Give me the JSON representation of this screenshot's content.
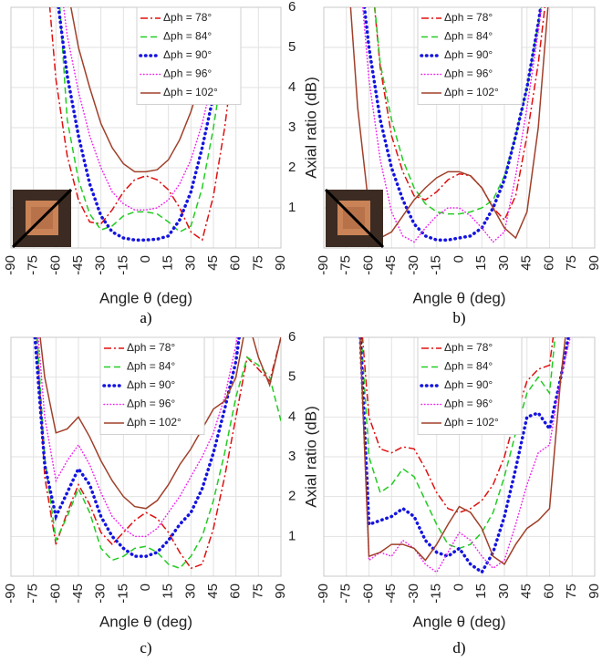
{
  "chart_data": [
    {
      "type": "line",
      "caption": "a)",
      "xlabel": "Angle θ (deg)",
      "ylabel": "Axial ratio (dB)",
      "show_ytick_labels": true,
      "grid": true,
      "xlim": [
        -90,
        90
      ],
      "ylim": [
        0,
        6
      ],
      "xticks": [
        -90,
        -75,
        -60,
        -45,
        -30,
        -15,
        0,
        15,
        30,
        45,
        60,
        75,
        90
      ],
      "yticks": [
        1,
        2,
        3,
        4,
        5,
        6
      ],
      "x": [
        -90,
        -82.5,
        -75,
        -67.5,
        -60,
        -52.5,
        -45,
        -37.5,
        -30,
        -22.5,
        -15,
        -7.5,
        0,
        7.5,
        15,
        22.5,
        30,
        37.5,
        45,
        52.5,
        60,
        67.5,
        75,
        82.5,
        90
      ],
      "series": [
        {
          "name": "Δph = 78°",
          "color": "#e01010",
          "linestyle": "dashdot",
          "linewidth": 1.5,
          "values": [
            null,
            null,
            null,
            7.5,
            4.2,
            2.3,
            1.2,
            0.65,
            0.6,
            0.95,
            1.4,
            1.7,
            1.8,
            1.7,
            1.45,
            1.0,
            0.4,
            0.2,
            1.3,
            3.0,
            5.2,
            7.5,
            null,
            null,
            null
          ]
        },
        {
          "name": "Δph = 84°",
          "color": "#22cc22",
          "linestyle": "dashed",
          "linewidth": 1.5,
          "values": [
            null,
            null,
            null,
            null,
            7.5,
            3.2,
            1.7,
            0.85,
            0.45,
            0.55,
            0.8,
            0.9,
            0.9,
            0.85,
            0.65,
            0.4,
            0.55,
            1.5,
            3.0,
            4.8,
            7.5,
            null,
            null,
            null,
            null
          ]
        },
        {
          "name": "Δph = 90°",
          "color": "#1414e0",
          "linestyle": "dotted",
          "linewidth": 3.5,
          "values": [
            null,
            null,
            null,
            null,
            6.5,
            4.3,
            2.8,
            1.6,
            0.8,
            0.4,
            0.25,
            0.2,
            0.2,
            0.22,
            0.3,
            0.7,
            1.4,
            2.5,
            3.8,
            5.4,
            7.5,
            null,
            null,
            null,
            null
          ]
        },
        {
          "name": "Δph = 96°",
          "color": "#ee22ee",
          "linestyle": "dotted",
          "linewidth": 1.5,
          "values": [
            null,
            null,
            null,
            null,
            7.5,
            5.3,
            3.9,
            2.8,
            2.0,
            1.4,
            1.1,
            0.95,
            0.95,
            1.0,
            1.2,
            1.6,
            2.2,
            3.1,
            4.3,
            5.8,
            7.5,
            null,
            null,
            null,
            null
          ]
        },
        {
          "name": "Δph = 102°",
          "color": "#a0402a",
          "linestyle": "solid",
          "linewidth": 1.5,
          "values": [
            null,
            null,
            null,
            null,
            null,
            6.5,
            5.0,
            4.0,
            3.1,
            2.5,
            2.1,
            1.9,
            1.9,
            1.95,
            2.2,
            2.7,
            3.4,
            4.3,
            5.3,
            6.5,
            null,
            null,
            null,
            null,
            null
          ]
        }
      ]
    },
    {
      "type": "line",
      "caption": "b)",
      "xlabel": "Angle θ (deg)",
      "show_ytick_labels": false,
      "grid": true,
      "xlim": [
        -90,
        90
      ],
      "ylim": [
        0,
        6
      ],
      "xticks": [
        -90,
        -75,
        -60,
        -45,
        -30,
        -15,
        0,
        15,
        30,
        45,
        60,
        75,
        90
      ],
      "yticks": [
        1,
        2,
        3,
        4,
        5,
        6
      ],
      "x": [
        -90,
        -82.5,
        -75,
        -67.5,
        -60,
        -52.5,
        -45,
        -37.5,
        -30,
        -22.5,
        -15,
        -7.5,
        0,
        7.5,
        15,
        22.5,
        30,
        37.5,
        45,
        52.5,
        60,
        67.5,
        75,
        82.5,
        90
      ],
      "series": [
        {
          "name": "Δph = 78°",
          "color": "#e01010",
          "linestyle": "dashdot",
          "linewidth": 1.5,
          "values": [
            null,
            null,
            null,
            null,
            7.5,
            4.5,
            2.8,
            1.9,
            1.3,
            1.2,
            1.4,
            1.7,
            1.85,
            1.8,
            1.5,
            1.0,
            0.7,
            1.3,
            2.8,
            4.6,
            7.0,
            null,
            null,
            null,
            null
          ]
        },
        {
          "name": "Δph = 84°",
          "color": "#22cc22",
          "linestyle": "dashed",
          "linewidth": 1.5,
          "values": [
            null,
            null,
            null,
            null,
            7.5,
            4.6,
            3.2,
            2.2,
            1.5,
            1.1,
            0.9,
            0.85,
            0.85,
            0.9,
            1.0,
            1.2,
            1.8,
            2.8,
            4.0,
            5.6,
            7.5,
            null,
            null,
            null,
            null
          ]
        },
        {
          "name": "Δph = 90°",
          "color": "#1414e0",
          "linestyle": "dotted",
          "linewidth": 3.5,
          "values": [
            null,
            null,
            null,
            7.5,
            5.0,
            3.2,
            2.0,
            1.2,
            0.6,
            0.3,
            0.2,
            0.2,
            0.25,
            0.3,
            0.5,
            1.0,
            1.7,
            2.8,
            4.0,
            5.6,
            7.5,
            null,
            null,
            null,
            null
          ]
        },
        {
          "name": "Δph = 96°",
          "color": "#ee22ee",
          "linestyle": "dotted",
          "linewidth": 1.5,
          "values": [
            null,
            null,
            null,
            7.5,
            4.2,
            2.2,
            0.9,
            0.3,
            0.15,
            0.5,
            0.8,
            1.0,
            1.0,
            0.8,
            0.5,
            0.15,
            0.4,
            1.8,
            3.5,
            5.4,
            7.5,
            null,
            null,
            null,
            null
          ]
        },
        {
          "name": "Δph = 102°",
          "color": "#a0402a",
          "linestyle": "solid",
          "linewidth": 1.5,
          "values": [
            null,
            null,
            7.5,
            3.5,
            1.0,
            0.25,
            0.4,
            0.8,
            1.2,
            1.5,
            1.75,
            1.9,
            1.9,
            1.8,
            1.5,
            1.0,
            0.5,
            0.25,
            0.9,
            3.0,
            6.5,
            null,
            null,
            null,
            null
          ]
        }
      ]
    },
    {
      "type": "line",
      "caption": "c)",
      "xlabel": "Angle θ (deg)",
      "ylabel": "Axial ratio (dB)",
      "show_ytick_labels": true,
      "grid": true,
      "xlim": [
        -90,
        90
      ],
      "ylim": [
        0,
        6
      ],
      "xticks": [
        -90,
        -75,
        -60,
        -45,
        -30,
        -15,
        0,
        15,
        30,
        45,
        60,
        75,
        90
      ],
      "yticks": [
        1,
        2,
        3,
        4,
        5,
        6
      ],
      "x": [
        -90,
        -82.5,
        -75,
        -67.5,
        -60,
        -52.5,
        -45,
        -37.5,
        -30,
        -22.5,
        -15,
        -7.5,
        0,
        7.5,
        15,
        22.5,
        30,
        37.5,
        45,
        52.5,
        60,
        67.5,
        75,
        82.5,
        90
      ],
      "series": [
        {
          "name": "Δph = 78°",
          "color": "#e01010",
          "linestyle": "dashdot",
          "linewidth": 1.5,
          "values": [
            null,
            null,
            7.5,
            2.5,
            0.8,
            1.6,
            2.3,
            1.8,
            1.1,
            0.8,
            1.1,
            1.4,
            1.6,
            1.45,
            1.1,
            0.6,
            0.2,
            0.3,
            1.2,
            2.5,
            4.0,
            5.5,
            5.2,
            4.9,
            6.0
          ]
        },
        {
          "name": "Δph = 84°",
          "color": "#22cc22",
          "linestyle": "dashed",
          "linewidth": 1.5,
          "values": [
            null,
            null,
            7.5,
            3.0,
            0.9,
            1.5,
            2.2,
            1.6,
            0.7,
            0.4,
            0.5,
            0.7,
            0.75,
            0.6,
            0.3,
            0.2,
            0.5,
            1.0,
            1.9,
            3.1,
            4.5,
            5.5,
            5.3,
            5.0,
            3.9
          ]
        },
        {
          "name": "Δph = 90°",
          "color": "#1414e0",
          "linestyle": "dotted",
          "linewidth": 3.5,
          "values": [
            null,
            null,
            6.5,
            2.8,
            1.5,
            2.1,
            2.7,
            2.3,
            1.5,
            1.0,
            0.7,
            0.5,
            0.5,
            0.6,
            0.9,
            1.3,
            1.6,
            2.2,
            3.1,
            4.2,
            5.4,
            7.5,
            null,
            null,
            null
          ]
        },
        {
          "name": "Δph = 96°",
          "color": "#ee22ee",
          "linestyle": "dotted",
          "linewidth": 1.5,
          "values": [
            null,
            null,
            7.5,
            4.0,
            2.4,
            2.9,
            3.3,
            2.8,
            2.1,
            1.5,
            1.2,
            1.0,
            1.0,
            1.2,
            1.6,
            2.0,
            2.5,
            3.0,
            3.6,
            4.5,
            5.8,
            7.5,
            null,
            null,
            null
          ]
        },
        {
          "name": "Δph = 102°",
          "color": "#a0402a",
          "linestyle": "solid",
          "linewidth": 1.5,
          "values": [
            null,
            null,
            7.5,
            5.0,
            3.6,
            3.7,
            4.0,
            3.5,
            2.9,
            2.4,
            2.0,
            1.75,
            1.7,
            1.9,
            2.3,
            2.8,
            3.2,
            3.7,
            4.2,
            4.4,
            5.0,
            6.5,
            5.5,
            4.8,
            6.0
          ]
        }
      ]
    },
    {
      "type": "line",
      "caption": "d)",
      "xlabel": "Angle θ (deg)",
      "show_ytick_labels": false,
      "grid": true,
      "xlim": [
        -90,
        90
      ],
      "ylim": [
        0,
        6
      ],
      "xticks": [
        -90,
        -75,
        -60,
        -45,
        -30,
        -15,
        0,
        15,
        30,
        45,
        60,
        75,
        90
      ],
      "yticks": [
        1,
        2,
        3,
        4,
        5,
        6
      ],
      "x": [
        -90,
        -82.5,
        -75,
        -67.5,
        -60,
        -52.5,
        -45,
        -37.5,
        -30,
        -22.5,
        -15,
        -7.5,
        0,
        7.5,
        15,
        22.5,
        30,
        37.5,
        45,
        52.5,
        60,
        67.5,
        75,
        82.5,
        90
      ],
      "series": [
        {
          "name": "Δph = 78°",
          "color": "#e01010",
          "linestyle": "dashdot",
          "linewidth": 1.5,
          "values": [
            null,
            null,
            null,
            7.5,
            4.0,
            3.2,
            3.1,
            3.25,
            3.2,
            2.7,
            2.1,
            1.7,
            1.6,
            1.7,
            1.9,
            2.3,
            3.0,
            4.0,
            4.9,
            5.2,
            5.3,
            7.5,
            null,
            null,
            null
          ]
        },
        {
          "name": "Δph = 84°",
          "color": "#22cc22",
          "linestyle": "dashed",
          "linewidth": 1.5,
          "values": [
            null,
            null,
            null,
            7.5,
            3.0,
            2.1,
            2.3,
            2.7,
            2.5,
            1.9,
            1.3,
            0.8,
            0.7,
            0.8,
            1.1,
            1.6,
            2.5,
            3.6,
            4.6,
            5.0,
            4.6,
            7.5,
            null,
            null,
            null
          ]
        },
        {
          "name": "Δph = 90°",
          "color": "#1414e0",
          "linestyle": "dotted",
          "linewidth": 3.5,
          "values": [
            null,
            null,
            null,
            7.5,
            1.3,
            1.4,
            1.5,
            1.7,
            1.5,
            0.9,
            0.6,
            0.5,
            0.7,
            0.3,
            0.1,
            0.6,
            1.5,
            2.7,
            4.0,
            4.1,
            3.7,
            5.0,
            6.5,
            null,
            null
          ]
        },
        {
          "name": "Δph = 96°",
          "color": "#ee22ee",
          "linestyle": "dotted",
          "linewidth": 1.5,
          "values": [
            null,
            null,
            null,
            7.5,
            0.4,
            0.6,
            0.5,
            0.9,
            0.7,
            0.3,
            0.1,
            0.6,
            1.1,
            0.9,
            0.5,
            0.2,
            0.4,
            1.3,
            2.3,
            3.1,
            3.3,
            5.0,
            6.2,
            null,
            null
          ]
        },
        {
          "name": "Δph = 102°",
          "color": "#a0402a",
          "linestyle": "solid",
          "linewidth": 1.5,
          "values": [
            null,
            null,
            null,
            7.5,
            0.5,
            0.6,
            0.8,
            0.8,
            0.7,
            0.4,
            0.8,
            1.3,
            1.75,
            1.6,
            1.2,
            0.5,
            0.3,
            0.8,
            1.2,
            1.4,
            1.7,
            5.0,
            7.5,
            6.0,
            null
          ]
        }
      ]
    }
  ]
}
